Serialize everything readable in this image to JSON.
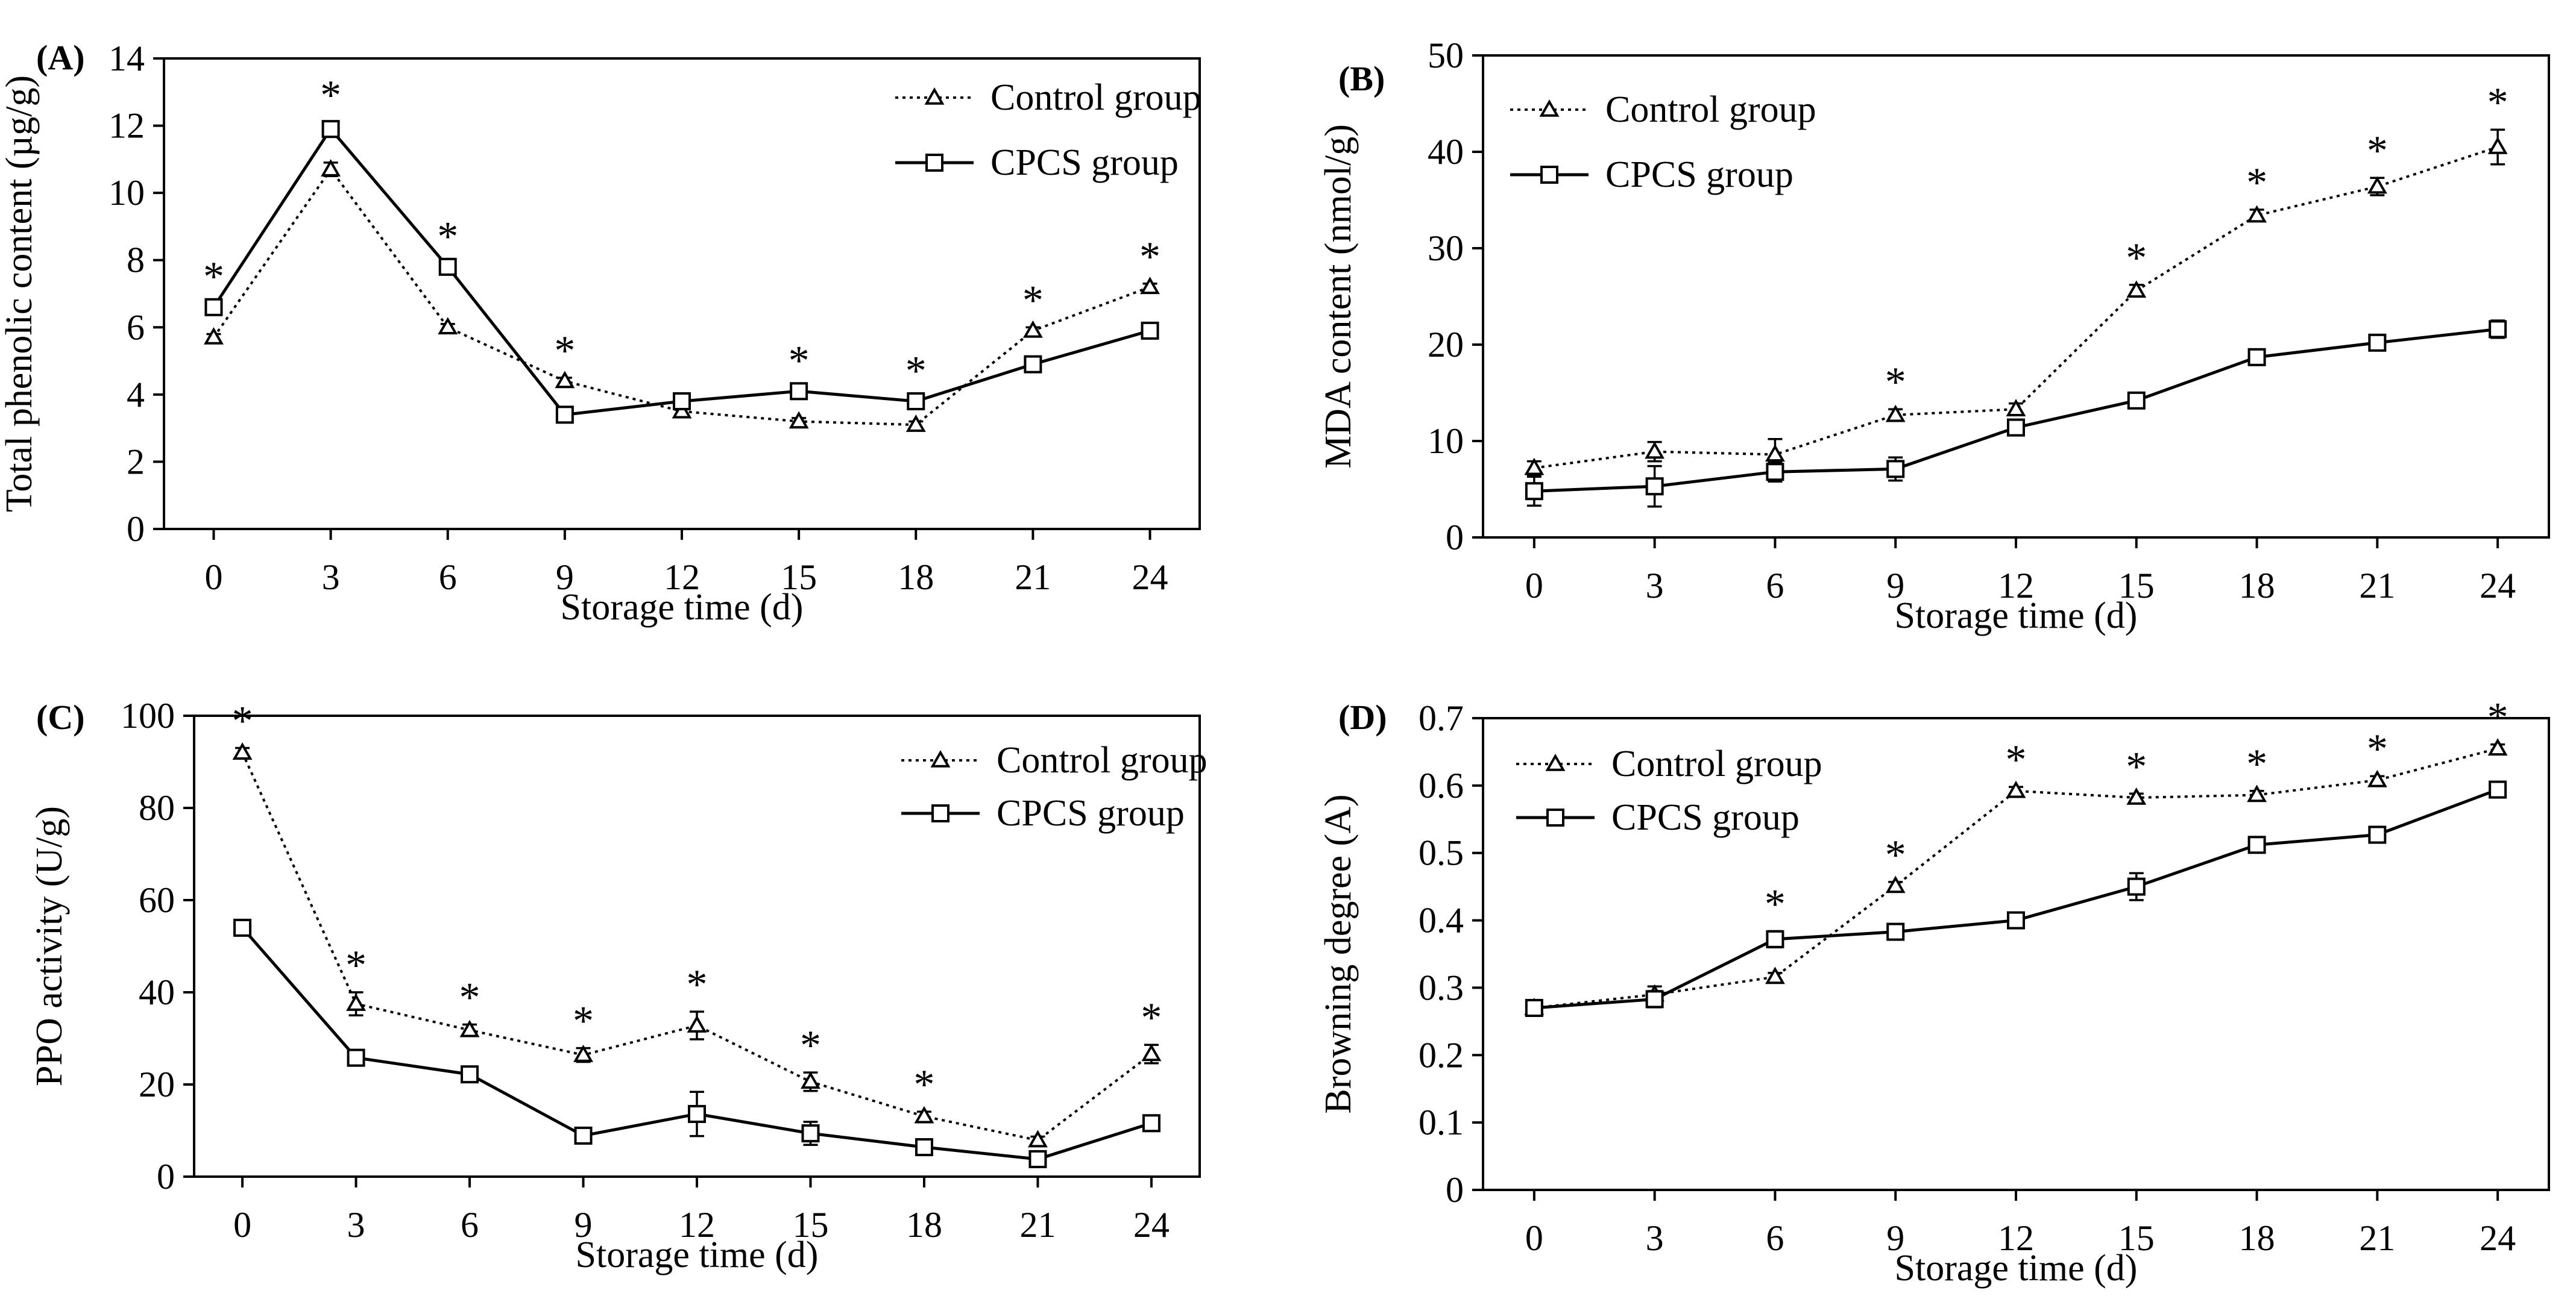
{
  "chart_data": [
    {
      "type": "line",
      "panel_label": "(A)",
      "xlabel": "Storage time (d)",
      "ylabel": "Total phenolic content (µg/g)",
      "x": [
        0,
        3,
        6,
        9,
        12,
        15,
        18,
        21,
        24
      ],
      "x_ticks": [
        "0",
        "3",
        "6",
        "9",
        "12",
        "15",
        "18",
        "21",
        "24"
      ],
      "ylim": [
        0,
        14
      ],
      "y_ticks": [
        "0",
        "2",
        "4",
        "6",
        "8",
        "10",
        "12",
        "14"
      ],
      "legend_position": "top-right",
      "series": [
        {
          "name": "Control group",
          "marker": "triangle",
          "line": "dotted",
          "values": [
            5.7,
            10.7,
            6.0,
            4.4,
            3.5,
            3.2,
            3.1,
            5.9,
            7.2
          ],
          "errors": [
            0.1,
            0.2,
            0.1,
            0.1,
            0.1,
            0.1,
            0.1,
            0.1,
            0.1
          ]
        },
        {
          "name": "CPCS group",
          "marker": "square",
          "line": "solid",
          "values": [
            6.6,
            11.9,
            7.8,
            3.4,
            3.8,
            4.1,
            3.8,
            4.9,
            5.9
          ],
          "errors": [
            0.1,
            0.2,
            0.1,
            0.1,
            0.1,
            0.1,
            0.1,
            0.1,
            0.1
          ]
        }
      ],
      "significance_marks": [
        "*",
        "*",
        "*",
        "*",
        "",
        "*",
        "*",
        "*",
        "*"
      ]
    },
    {
      "type": "line",
      "panel_label": "(B)",
      "xlabel": "Storage time (d)",
      "ylabel": "MDA content (nmol/g)",
      "x": [
        0,
        3,
        6,
        9,
        12,
        15,
        18,
        21,
        24
      ],
      "x_ticks": [
        "0",
        "3",
        "6",
        "9",
        "12",
        "15",
        "18",
        "21",
        "24"
      ],
      "ylim": [
        0,
        50
      ],
      "y_ticks": [
        "0",
        "10",
        "20",
        "30",
        "40",
        "50"
      ],
      "legend_position": "top-left",
      "series": [
        {
          "name": "Control group",
          "marker": "triangle",
          "line": "dotted",
          "values": [
            7.2,
            8.9,
            8.6,
            12.7,
            13.3,
            25.6,
            33.4,
            36.4,
            40.5
          ],
          "errors": [
            0.7,
            1.0,
            1.6,
            0.6,
            0.6,
            0.6,
            0.6,
            0.9,
            1.8
          ]
        },
        {
          "name": "CPCS group",
          "marker": "square",
          "line": "solid",
          "values": [
            4.8,
            5.3,
            6.8,
            7.1,
            11.4,
            14.2,
            18.7,
            20.2,
            21.6
          ],
          "errors": [
            1.5,
            2.1,
            1.0,
            1.2,
            0.5,
            0.5,
            0.5,
            0.7,
            0.9
          ]
        }
      ],
      "significance_marks": [
        "",
        "",
        "",
        "*",
        "",
        "*",
        "*",
        "*",
        "*"
      ]
    },
    {
      "type": "line",
      "panel_label": "(C)",
      "xlabel": "Storage time (d)",
      "ylabel": "PPO activity (U/g)",
      "x": [
        0,
        3,
        6,
        9,
        12,
        15,
        18,
        21,
        24
      ],
      "x_ticks": [
        "0",
        "3",
        "6",
        "9",
        "12",
        "15",
        "18",
        "21",
        "24"
      ],
      "ylim": [
        0,
        100
      ],
      "y_ticks": [
        "0",
        "20",
        "40",
        "60",
        "80",
        "100"
      ],
      "legend_position": "top-right",
      "series": [
        {
          "name": "Control group",
          "marker": "triangle",
          "line": "dotted",
          "values": [
            92.0,
            37.5,
            31.8,
            26.4,
            32.8,
            20.6,
            13.1,
            7.9,
            26.6
          ],
          "errors": [
            1.0,
            2.5,
            1.2,
            1.5,
            3.0,
            2.0,
            1.0,
            0.8,
            2.0
          ]
        },
        {
          "name": "CPCS group",
          "marker": "square",
          "line": "solid",
          "values": [
            54.0,
            25.8,
            22.2,
            8.9,
            13.6,
            9.4,
            6.4,
            3.8,
            11.6
          ],
          "errors": [
            1.0,
            1.0,
            1.2,
            1.0,
            4.8,
            2.5,
            1.5,
            1.2,
            1.2
          ]
        }
      ],
      "significance_marks": [
        "*",
        "*",
        "*",
        "*",
        "*",
        "*",
        "*",
        "",
        "*"
      ]
    },
    {
      "type": "line",
      "panel_label": "(D)",
      "xlabel": "Storage time (d)",
      "ylabel": "Browning degree (A)",
      "x": [
        0,
        3,
        6,
        9,
        12,
        15,
        18,
        21,
        24
      ],
      "x_ticks": [
        "0",
        "3",
        "6",
        "9",
        "12",
        "15",
        "18",
        "21",
        "24"
      ],
      "ylim": [
        0,
        0.7
      ],
      "y_ticks": [
        "0",
        "0.1",
        "0.2",
        "0.3",
        "0.4",
        "0.5",
        "0.6",
        "0.7"
      ],
      "legend_position": "top-left",
      "series": [
        {
          "name": "Control group",
          "marker": "triangle",
          "line": "dotted",
          "values": [
            0.27,
            0.29,
            0.316,
            0.451,
            0.592,
            0.582,
            0.586,
            0.608,
            0.655
          ],
          "errors": [
            0.005,
            0.012,
            0.006,
            0.006,
            0.006,
            0.006,
            0.006,
            0.006,
            0.006
          ]
        },
        {
          "name": "CPCS group",
          "marker": "square",
          "line": "solid",
          "values": [
            0.27,
            0.283,
            0.372,
            0.383,
            0.4,
            0.45,
            0.512,
            0.527,
            0.594
          ],
          "errors": [
            0.005,
            0.012,
            0.012,
            0.006,
            0.006,
            0.02,
            0.006,
            0.008,
            0.006
          ]
        }
      ],
      "significance_marks": [
        "",
        "",
        "*",
        "*",
        "*",
        "*",
        "*",
        "*",
        "*"
      ]
    }
  ]
}
